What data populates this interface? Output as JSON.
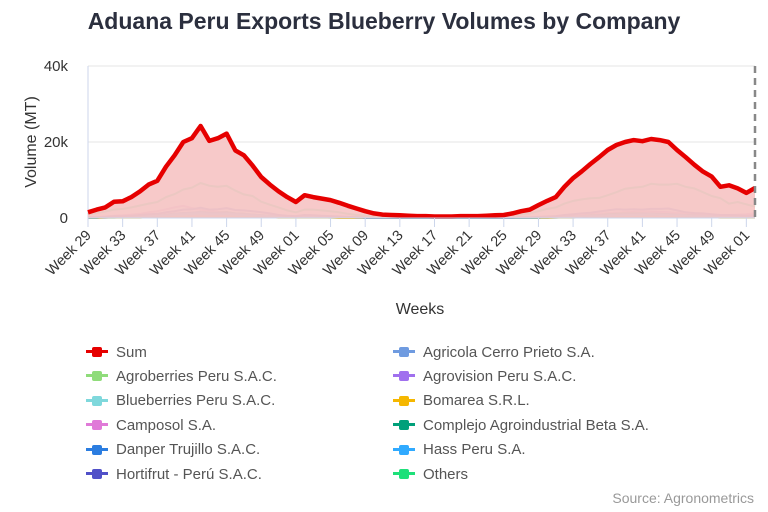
{
  "title": "Aduana Peru Exports Blueberry Volumes by Company",
  "source": "Source: Agronometrics",
  "chart_data": {
    "type": "line",
    "title": "Aduana Peru Exports Blueberry Volumes by Company",
    "xlabel": "Weeks",
    "ylabel": "Volume (MT)",
    "ylim": [
      0,
      40000
    ],
    "y_ticks": [
      {
        "value": 0,
        "label": "0"
      },
      {
        "value": 20000,
        "label": "20k"
      },
      {
        "value": 40000,
        "label": "40k"
      }
    ],
    "grid": true,
    "legend": "bottom",
    "units_note": "values in thousands of MT",
    "x": [
      "Week 29",
      "Week 30",
      "Week 31",
      "Week 32",
      "Week 33",
      "Week 34",
      "Week 35",
      "Week 36",
      "Week 37",
      "Week 38",
      "Week 39",
      "Week 40",
      "Week 41",
      "Week 42",
      "Week 43",
      "Week 44",
      "Week 45",
      "Week 46",
      "Week 47",
      "Week 48",
      "Week 49",
      "Week 50",
      "Week 51",
      "Week 52",
      "Week 01",
      "Week 02",
      "Week 03",
      "Week 04",
      "Week 05",
      "Week 06",
      "Week 07",
      "Week 08",
      "Week 09",
      "Week 10",
      "Week 11",
      "Week 12",
      "Week 13",
      "Week 14",
      "Week 15",
      "Week 16",
      "Week 17",
      "Week 18",
      "Week 19",
      "Week 20",
      "Week 21",
      "Week 22",
      "Week 23",
      "Week 24",
      "Week 25",
      "Week 26",
      "Week 27",
      "Week 28",
      "Week 29",
      "Week 30",
      "Week 31",
      "Week 32",
      "Week 33",
      "Week 34",
      "Week 35",
      "Week 36",
      "Week 37",
      "Week 38",
      "Week 39",
      "Week 40",
      "Week 41",
      "Week 42",
      "Week 43",
      "Week 44",
      "Week 45",
      "Week 46",
      "Week 47",
      "Week 48",
      "Week 49",
      "Week 50",
      "Week 51",
      "Week 52",
      "Week 01",
      "Week 02"
    ],
    "x_tick_labels": [
      "Week 29",
      "Week 33",
      "Week 37",
      "Week 41",
      "Week 45",
      "Week 49",
      "Week 01",
      "Week 05",
      "Week 09",
      "Week 13",
      "Week 17",
      "Week 21",
      "Week 25",
      "Week 29",
      "Week 33",
      "Week 37",
      "Week 41",
      "Week 45",
      "Week 49",
      "Week 01"
    ],
    "marker_line": {
      "style": "dashed",
      "color": "#888888",
      "at": "Week 02"
    },
    "series": [
      {
        "name": "Sum",
        "color": "#e60000",
        "fill": "#f7c6c6",
        "values": [
          1.5,
          2.2,
          2.8,
          4.3,
          4.4,
          5.5,
          7.0,
          8.8,
          9.8,
          13.5,
          16.5,
          20.0,
          21.0,
          24.2,
          20.3,
          21.0,
          22.2,
          17.8,
          16.5,
          13.8,
          10.8,
          8.8,
          7.0,
          5.5,
          4.2,
          6.0,
          5.5,
          5.1,
          4.7,
          4.0,
          3.2,
          2.5,
          1.8,
          1.2,
          0.9,
          0.8,
          0.7,
          0.6,
          0.5,
          0.5,
          0.4,
          0.4,
          0.4,
          0.5,
          0.5,
          0.5,
          0.6,
          0.7,
          0.8,
          1.2,
          1.8,
          2.2,
          3.4,
          4.5,
          5.5,
          8.2,
          10.5,
          12.3,
          14.2,
          16.0,
          17.9,
          19.2,
          20.0,
          20.5,
          20.2,
          20.8,
          20.5,
          20.0,
          17.9,
          16.0,
          14.0,
          12.2,
          10.9,
          8.2,
          8.6,
          7.8,
          6.6,
          7.9
        ]
      },
      {
        "name": "Agricola Cerro Prieto S.A.",
        "color": "#6f9be0",
        "values": [
          0.1,
          0.1,
          0.1,
          0.2,
          0.2,
          0.2,
          0.3,
          0.4,
          0.4,
          0.5,
          0.6,
          0.7,
          0.8,
          0.9,
          0.8,
          0.8,
          0.8,
          0.7,
          0.6,
          0.5,
          0.4,
          0.3,
          0.3,
          0.2,
          0.2,
          0.2,
          0.2,
          0.2,
          0.2,
          0.1,
          0.1,
          0.1,
          0,
          0,
          0,
          0,
          0,
          0,
          0,
          0,
          0,
          0,
          0,
          0,
          0,
          0,
          0,
          0,
          0,
          0,
          0,
          0,
          0,
          0.1,
          0.1,
          0.2,
          0.3,
          0.4,
          0.5,
          0.6,
          0.7,
          0.8,
          0.9,
          0.9,
          0.9,
          0.9,
          0.8,
          0.8,
          0.7,
          0.6,
          0.5,
          0.4,
          0.3,
          0.3,
          0.2,
          0.2,
          0.2,
          0.2
        ]
      },
      {
        "name": "Agroberries Peru S.A.C.",
        "color": "#8fdc7a",
        "values": [
          0.1,
          0.1,
          0.2,
          0.2,
          0.2,
          0.3,
          0.3,
          0.4,
          0.5,
          0.6,
          0.7,
          0.8,
          0.8,
          0.9,
          0.8,
          0.8,
          0.9,
          0.7,
          0.6,
          0.5,
          0.4,
          0.4,
          0.3,
          0.2,
          0.2,
          0.3,
          0.2,
          0.2,
          0.2,
          0.1,
          0.1,
          0.1,
          0,
          0,
          0,
          0,
          0,
          0,
          0,
          0,
          0,
          0,
          0,
          0,
          0,
          0,
          0,
          0,
          0,
          0,
          0,
          0.1,
          0.1,
          0.1,
          0.2,
          0.3,
          0.3,
          0.4,
          0.5,
          0.6,
          0.6,
          0.7,
          0.8,
          0.8,
          0.8,
          0.8,
          0.7,
          0.7,
          0.6,
          0.5,
          0.5,
          0.4,
          0.3,
          0.3,
          0.3,
          0.2,
          0.2,
          0.2
        ]
      },
      {
        "name": "Agrovision Peru S.A.C.",
        "color": "#a070ee",
        "values": [
          0.1,
          0.1,
          0.1,
          0.2,
          0.2,
          0.3,
          0.4,
          0.5,
          0.6,
          0.8,
          1.0,
          1.2,
          1.3,
          1.5,
          1.3,
          1.4,
          1.5,
          1.2,
          1.1,
          0.9,
          0.7,
          0.6,
          0.5,
          0.4,
          0.3,
          0.5,
          0.4,
          0.4,
          0.3,
          0.3,
          0.2,
          0.2,
          0.1,
          0.1,
          0.1,
          0.1,
          0.1,
          0.1,
          0.1,
          0.1,
          0.1,
          0.1,
          0.1,
          0.1,
          0.1,
          0.1,
          0.1,
          0.1,
          0.1,
          0.1,
          0.1,
          0.1,
          0.1,
          0.2,
          0.2,
          0.4,
          0.5,
          0.6,
          0.8,
          1.0,
          1.2,
          1.4,
          1.5,
          1.6,
          1.6,
          1.7,
          1.6,
          1.5,
          1.3,
          1.1,
          1.0,
          0.9,
          0.8,
          0.6,
          0.6,
          0.5,
          0.5,
          0.6
        ]
      },
      {
        "name": "Blueberries Peru S.A.C.",
        "color": "#7fd8dc",
        "values": [
          0.1,
          0.1,
          0.1,
          0.1,
          0.2,
          0.2,
          0.3,
          0.3,
          0.4,
          0.5,
          0.6,
          0.7,
          0.7,
          0.8,
          0.7,
          0.7,
          0.7,
          0.6,
          0.5,
          0.4,
          0.4,
          0.3,
          0.2,
          0.2,
          0.2,
          0.2,
          0.2,
          0.2,
          0.1,
          0.1,
          0.1,
          0.1,
          0,
          0,
          0,
          0,
          0,
          0,
          0,
          0,
          0,
          0,
          0,
          0,
          0,
          0,
          0,
          0,
          0,
          0,
          0,
          0,
          0.1,
          0.1,
          0.1,
          0.2,
          0.2,
          0.3,
          0.4,
          0.5,
          0.5,
          0.6,
          0.7,
          0.7,
          0.7,
          0.7,
          0.7,
          0.6,
          0.6,
          0.5,
          0.4,
          0.4,
          0.3,
          0.3,
          0.2,
          0.2,
          0.2,
          0.2
        ]
      },
      {
        "name": "Bomarea S.R.L.",
        "color": "#f5b700",
        "values": [
          0,
          0,
          0.1,
          0.1,
          0.1,
          0.1,
          0.1,
          0.2,
          0.2,
          0.2,
          0.3,
          0.3,
          0.4,
          0.4,
          0.4,
          0.4,
          0.4,
          0.3,
          0.3,
          0.2,
          0.2,
          0.2,
          0.1,
          0.1,
          0.1,
          0.1,
          0.1,
          0.1,
          0.1,
          0,
          0,
          0,
          0,
          0,
          0,
          0,
          0,
          0,
          0,
          0,
          0,
          0,
          0,
          0,
          0,
          0,
          0,
          0,
          0,
          0,
          0,
          0,
          0,
          0,
          0.1,
          0.1,
          0.1,
          0.2,
          0.2,
          0.3,
          0.3,
          0.4,
          0.4,
          0.4,
          0.4,
          0.4,
          0.4,
          0.4,
          0.3,
          0.3,
          0.2,
          0.2,
          0.2,
          0.1,
          0.1,
          0.1,
          0.1,
          0.1
        ]
      },
      {
        "name": "Camposol S.A.",
        "color": "#e07ad8",
        "values": [
          0.2,
          0.3,
          0.4,
          0.6,
          0.7,
          0.9,
          1.1,
          1.5,
          1.8,
          2.3,
          2.8,
          3.2,
          2.6,
          2.2,
          1.8,
          1.6,
          1.5,
          1.2,
          1.0,
          0.8,
          0.6,
          0.5,
          0.4,
          0.3,
          0.3,
          0.4,
          0.4,
          0.3,
          0.3,
          0.2,
          0.2,
          0.1,
          0.1,
          0.1,
          0.1,
          0.1,
          0.1,
          0.1,
          0.1,
          0.1,
          0.1,
          0.1,
          0.1,
          0.1,
          0.1,
          0.1,
          0.1,
          0.1,
          0.1,
          0.1,
          0.1,
          0.1,
          0.2,
          0.3,
          0.4,
          0.5,
          0.6,
          0.8,
          1.0,
          1.1,
          1.3,
          1.4,
          1.5,
          1.5,
          1.6,
          1.5,
          1.4,
          1.4,
          1.3,
          1.2,
          1.1,
          1.0,
          0.9,
          0.8,
          0.8,
          0.9,
          1.0,
          1.3
        ]
      },
      {
        "name": "Complejo Agroindustrial Beta S.A.",
        "color": "#00a07a",
        "values": [
          0.1,
          0.1,
          0.2,
          0.3,
          0.3,
          0.4,
          0.5,
          0.6,
          0.7,
          0.9,
          1.1,
          1.3,
          1.4,
          1.6,
          1.4,
          1.4,
          1.5,
          1.2,
          1.1,
          0.9,
          0.7,
          0.6,
          0.5,
          0.4,
          0.3,
          0.4,
          0.4,
          0.3,
          0.3,
          0.3,
          0.2,
          0.2,
          0.1,
          0.1,
          0.1,
          0.1,
          0.1,
          0.1,
          0.1,
          0.1,
          0.1,
          0.1,
          0.1,
          0.1,
          0.1,
          0.1,
          0.1,
          0.1,
          0.1,
          0.1,
          0.1,
          0.1,
          0.1,
          0.2,
          0.2,
          0.3,
          0.4,
          0.5,
          0.7,
          0.8,
          1.0,
          1.1,
          1.2,
          1.2,
          1.2,
          1.1,
          1.1,
          1.0,
          0.9,
          0.8,
          0.7,
          0.6,
          0.5,
          0.4,
          0.4,
          0.3,
          0.3,
          0.3
        ]
      },
      {
        "name": "Danper Trujillo S.A.C.",
        "color": "#2b7de0",
        "values": [
          0.1,
          0.1,
          0.2,
          0.3,
          0.3,
          0.4,
          0.5,
          0.6,
          0.7,
          0.9,
          1.1,
          1.3,
          1.4,
          1.5,
          1.3,
          1.3,
          1.3,
          1.1,
          1.0,
          0.9,
          0.7,
          0.6,
          0.5,
          0.4,
          0.3,
          0.4,
          0.4,
          0.3,
          0.3,
          0.3,
          0.2,
          0.2,
          0.1,
          0.1,
          0.1,
          0.1,
          0.1,
          0.1,
          0.1,
          0.1,
          0.1,
          0.1,
          0.1,
          0.1,
          0.1,
          0.1,
          0.1,
          0.1,
          0.1,
          0.1,
          0.1,
          0.1,
          0.1,
          0.2,
          0.2,
          0.3,
          0.4,
          0.5,
          0.6,
          0.7,
          0.8,
          0.9,
          1.0,
          1.0,
          1.1,
          1.1,
          1.0,
          1.0,
          0.9,
          0.8,
          0.7,
          0.6,
          0.5,
          0.4,
          0.4,
          0.3,
          0.3,
          0.3
        ]
      },
      {
        "name": "Hass Peru S.A.",
        "color": "#30aaff",
        "values": [
          0.1,
          0.1,
          0.2,
          0.2,
          0.3,
          0.3,
          0.4,
          0.5,
          0.6,
          0.7,
          0.9,
          1.0,
          1.1,
          1.2,
          1.0,
          1.0,
          1.1,
          0.9,
          0.8,
          0.7,
          0.6,
          0.5,
          0.4,
          0.3,
          0.3,
          0.3,
          0.3,
          0.3,
          0.2,
          0.2,
          0.2,
          0.1,
          0.1,
          0.1,
          0.1,
          0.1,
          0.1,
          0.1,
          0.1,
          0.1,
          0.1,
          0.1,
          0.1,
          0.1,
          0.1,
          0.1,
          0.1,
          0.1,
          0.1,
          0.1,
          0.1,
          0.1,
          0.1,
          0.1,
          0.2,
          0.2,
          0.3,
          0.4,
          0.5,
          0.5,
          0.6,
          0.7,
          0.8,
          0.8,
          0.8,
          0.9,
          0.8,
          0.8,
          0.7,
          0.6,
          0.5,
          0.5,
          0.4,
          0.3,
          0.3,
          0.3,
          0.2,
          0.2
        ]
      },
      {
        "name": "Hortifrut - Perú S.A.C.",
        "color": "#5050c8",
        "values": [
          0.2,
          0.2,
          0.3,
          0.5,
          0.5,
          0.6,
          0.8,
          1.0,
          1.1,
          1.5,
          1.8,
          2.2,
          2.3,
          2.7,
          2.2,
          2.3,
          2.6,
          2.1,
          2.0,
          1.8,
          1.5,
          1.2,
          0.8,
          0.6,
          0.5,
          0.8,
          0.7,
          0.6,
          0.5,
          0.4,
          0.3,
          0.2,
          0.1,
          0.1,
          0.1,
          0.1,
          0.1,
          0.1,
          0.1,
          0.1,
          0.1,
          0.1,
          0.1,
          0.1,
          0.1,
          0.1,
          0.1,
          0.1,
          0.1,
          0.1,
          0.2,
          0.2,
          0.3,
          0.4,
          0.5,
          0.8,
          1.0,
          1.2,
          1.4,
          1.7,
          2.0,
          2.3,
          2.2,
          2.3,
          2.2,
          2.4,
          2.4,
          2.5,
          2.0,
          1.5,
          1.3,
          1.2,
          1.0,
          0.8,
          0.8,
          0.7,
          0.6,
          0.7
        ]
      },
      {
        "name": "Others",
        "color": "#1ee07a",
        "values": [
          1.0,
          1.3,
          1.7,
          2.2,
          2.4,
          2.8,
          3.3,
          3.8,
          4.2,
          5.5,
          6.3,
          7.5,
          8.0,
          9.2,
          8.5,
          8.2,
          8.5,
          7.2,
          6.2,
          5.8,
          4.3,
          3.5,
          2.8,
          2.0,
          1.5,
          2.2,
          2.2,
          2.0,
          1.8,
          1.5,
          1.1,
          0.8,
          0.6,
          0.5,
          0.4,
          0.4,
          0.4,
          0.3,
          0.3,
          0.3,
          0.3,
          0.3,
          0.3,
          0.3,
          0.4,
          0.4,
          0.5,
          0.6,
          0.6,
          0.8,
          1.0,
          1.2,
          1.8,
          2.4,
          2.8,
          3.8,
          4.5,
          4.9,
          5.2,
          5.3,
          6.0,
          6.8,
          7.7,
          8.0,
          8.2,
          9.0,
          8.8,
          8.8,
          9.0,
          8.2,
          7.8,
          6.8,
          5.8,
          5.2,
          3.8,
          4.2,
          3.6,
          3.0
        ]
      }
    ],
    "legend_order": [
      "Sum",
      "Agricola Cerro Prieto S.A.",
      "Agroberries Peru S.A.C.",
      "Agrovision Peru S.A.C.",
      "Blueberries Peru S.A.C.",
      "Bomarea S.R.L.",
      "Camposol S.A.",
      "Complejo Agroindustrial Beta S.A.",
      "Danper Trujillo S.A.C.",
      "Hass Peru S.A.",
      "Hortifrut - Perú S.A.C.",
      "Others"
    ]
  }
}
